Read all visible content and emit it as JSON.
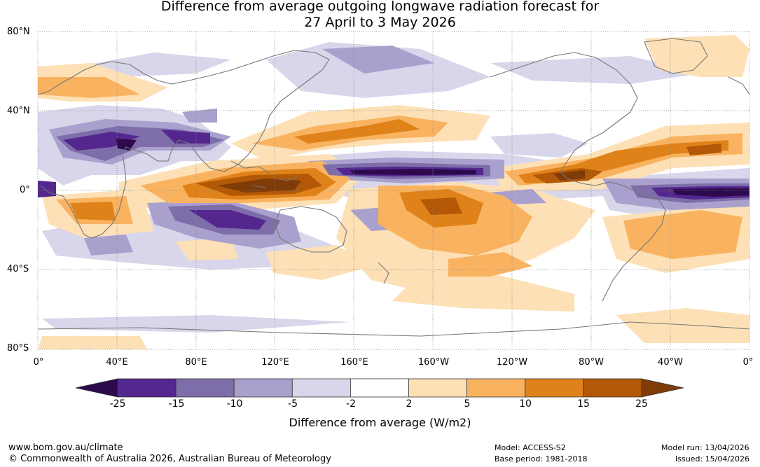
{
  "title": {
    "line1": "Difference from average outgoing longwave radiation forecast for",
    "line2": "27 April to 3 May 2026"
  },
  "map": {
    "lat_labels": [
      "80°N",
      "40°N",
      "0°",
      "40°S",
      "80°S"
    ],
    "lon_labels": [
      "0°",
      "40°E",
      "80°E",
      "120°E",
      "160°E",
      "160°W",
      "120°W",
      "80°W",
      "40°W",
      "0°"
    ]
  },
  "colorbar": {
    "tick_labels": [
      "-25",
      "-15",
      "-10",
      "-5",
      "-2",
      "2",
      "5",
      "10",
      "15",
      "25"
    ],
    "colors": [
      "#2d0a4d",
      "#54278f",
      "#7d6eaa",
      "#a9a0cd",
      "#d8d6ea",
      "#ffffff",
      "#fde0b5",
      "#f9b360",
      "#e0821a",
      "#b35806",
      "#7f3b08"
    ],
    "caption": "Difference from average (W/m2)"
  },
  "footer": {
    "url": "www.bom.gov.au/climate",
    "copyright": "© Commonwealth of Australia 2026, Australian Bureau of Meteorology",
    "model": "Model: ACCESS-S2",
    "base_period": "Base period: 1981-2018",
    "model_run": "Model run: 13/04/2026",
    "issued": "Issued: 15/04/2026"
  }
}
